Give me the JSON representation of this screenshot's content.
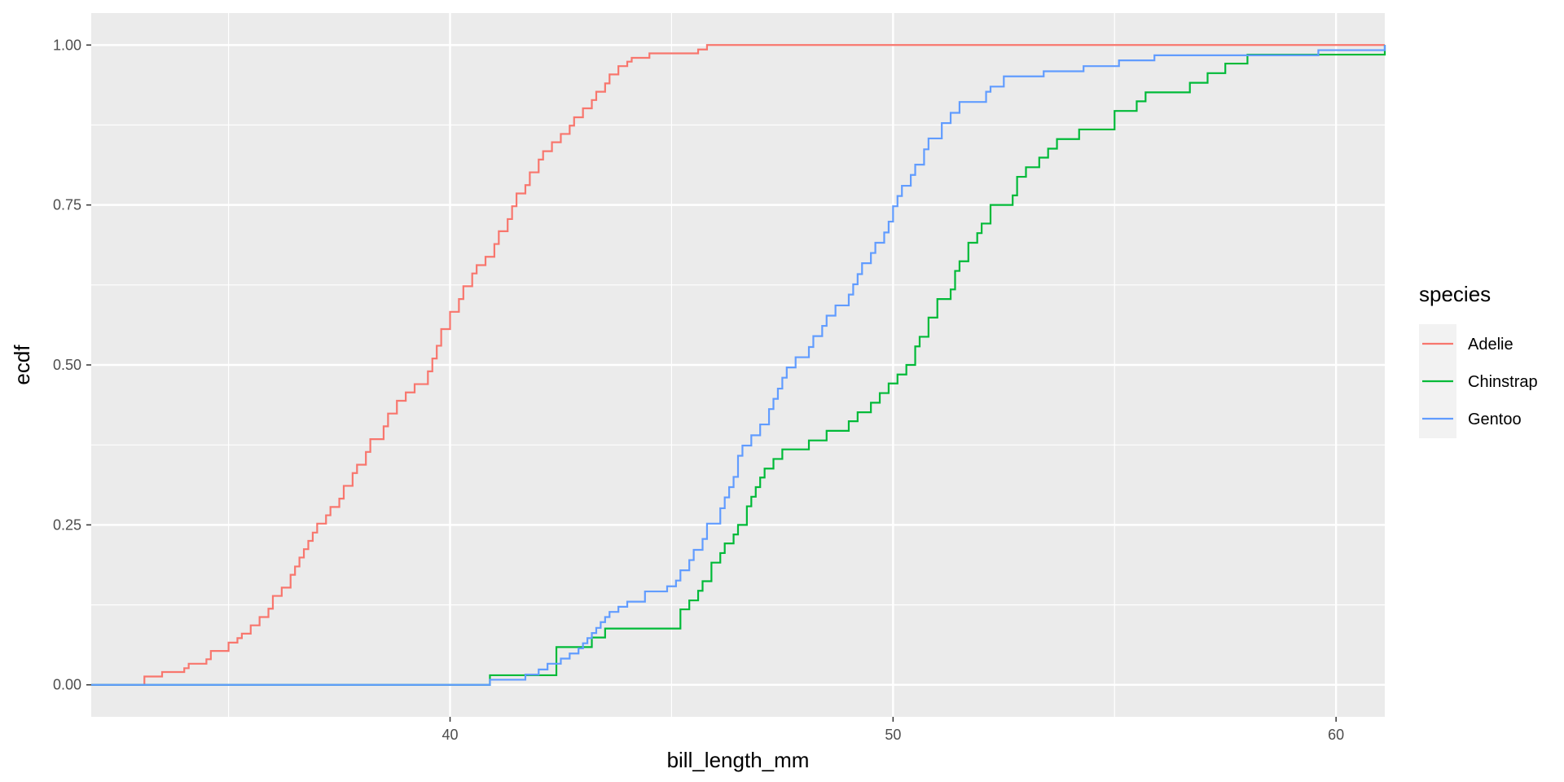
{
  "chart_data": {
    "type": "line",
    "step": true,
    "title": "",
    "xlabel": "bill_length_mm",
    "ylabel": "ecdf",
    "xlim": [
      31.9,
      61.1
    ],
    "ylim": [
      -0.05,
      1.05
    ],
    "x_ticks": [
      40,
      50,
      60
    ],
    "x_tick_labels": [
      "40",
      "50",
      "60"
    ],
    "y_ticks": [
      0,
      0.25,
      0.5,
      0.75,
      1
    ],
    "y_tick_labels": [
      "0.00",
      "0.25",
      "0.50",
      "0.75",
      "1.00"
    ],
    "grid": true,
    "panel_background": "#ebebeb",
    "legend": {
      "title": "species",
      "position": "right"
    },
    "series": [
      {
        "name": "Adelie",
        "color": "#F8766D",
        "points": [
          [
            32.1,
            0.0
          ],
          [
            33.1,
            0.013
          ],
          [
            33.5,
            0.02
          ],
          [
            34.0,
            0.026
          ],
          [
            34.1,
            0.033
          ],
          [
            34.5,
            0.04
          ],
          [
            34.6,
            0.053
          ],
          [
            35.0,
            0.066
          ],
          [
            35.2,
            0.073
          ],
          [
            35.3,
            0.08
          ],
          [
            35.5,
            0.093
          ],
          [
            35.7,
            0.106
          ],
          [
            35.9,
            0.119
          ],
          [
            36.0,
            0.139
          ],
          [
            36.2,
            0.152
          ],
          [
            36.4,
            0.172
          ],
          [
            36.5,
            0.185
          ],
          [
            36.6,
            0.199
          ],
          [
            36.7,
            0.212
          ],
          [
            36.8,
            0.225
          ],
          [
            36.9,
            0.238
          ],
          [
            37.0,
            0.252
          ],
          [
            37.2,
            0.265
          ],
          [
            37.3,
            0.278
          ],
          [
            37.5,
            0.291
          ],
          [
            37.6,
            0.311
          ],
          [
            37.8,
            0.331
          ],
          [
            37.9,
            0.344
          ],
          [
            38.1,
            0.364
          ],
          [
            38.2,
            0.384
          ],
          [
            38.5,
            0.404
          ],
          [
            38.6,
            0.424
          ],
          [
            38.8,
            0.444
          ],
          [
            39.0,
            0.457
          ],
          [
            39.2,
            0.47
          ],
          [
            39.5,
            0.49
          ],
          [
            39.6,
            0.51
          ],
          [
            39.7,
            0.53
          ],
          [
            39.8,
            0.556
          ],
          [
            40.0,
            0.583
          ],
          [
            40.2,
            0.603
          ],
          [
            40.3,
            0.623
          ],
          [
            40.5,
            0.643
          ],
          [
            40.6,
            0.656
          ],
          [
            40.8,
            0.669
          ],
          [
            41.0,
            0.689
          ],
          [
            41.1,
            0.709
          ],
          [
            41.3,
            0.728
          ],
          [
            41.4,
            0.748
          ],
          [
            41.5,
            0.768
          ],
          [
            41.7,
            0.781
          ],
          [
            41.8,
            0.801
          ],
          [
            42.0,
            0.821
          ],
          [
            42.1,
            0.834
          ],
          [
            42.3,
            0.848
          ],
          [
            42.5,
            0.861
          ],
          [
            42.7,
            0.874
          ],
          [
            42.8,
            0.887
          ],
          [
            43.0,
            0.901
          ],
          [
            43.2,
            0.914
          ],
          [
            43.3,
            0.927
          ],
          [
            43.5,
            0.94
          ],
          [
            43.6,
            0.954
          ],
          [
            43.8,
            0.967
          ],
          [
            44.0,
            0.974
          ],
          [
            44.1,
            0.98
          ],
          [
            44.5,
            0.987
          ],
          [
            45.6,
            0.993
          ],
          [
            45.8,
            1.0
          ],
          [
            46.0,
            1.0
          ],
          [
            61.1,
            1.0
          ]
        ]
      },
      {
        "name": "Chinstrap",
        "color": "#00BA38",
        "points": [
          [
            40.9,
            0.015
          ],
          [
            42.4,
            0.059
          ],
          [
            43.2,
            0.074
          ],
          [
            43.5,
            0.088
          ],
          [
            45.2,
            0.118
          ],
          [
            45.4,
            0.132
          ],
          [
            45.6,
            0.147
          ],
          [
            45.7,
            0.162
          ],
          [
            45.9,
            0.191
          ],
          [
            46.1,
            0.206
          ],
          [
            46.2,
            0.221
          ],
          [
            46.4,
            0.235
          ],
          [
            46.5,
            0.25
          ],
          [
            46.7,
            0.279
          ],
          [
            46.8,
            0.294
          ],
          [
            46.9,
            0.309
          ],
          [
            47.0,
            0.324
          ],
          [
            47.1,
            0.338
          ],
          [
            47.3,
            0.353
          ],
          [
            47.5,
            0.368
          ],
          [
            48.1,
            0.382
          ],
          [
            48.5,
            0.397
          ],
          [
            49.0,
            0.412
          ],
          [
            49.2,
            0.426
          ],
          [
            49.5,
            0.441
          ],
          [
            49.7,
            0.456
          ],
          [
            49.9,
            0.471
          ],
          [
            50.1,
            0.485
          ],
          [
            50.3,
            0.5
          ],
          [
            50.5,
            0.529
          ],
          [
            50.6,
            0.544
          ],
          [
            50.8,
            0.574
          ],
          [
            51.0,
            0.603
          ],
          [
            51.3,
            0.618
          ],
          [
            51.4,
            0.647
          ],
          [
            51.5,
            0.662
          ],
          [
            51.7,
            0.691
          ],
          [
            51.9,
            0.706
          ],
          [
            52.0,
            0.721
          ],
          [
            52.2,
            0.75
          ],
          [
            52.7,
            0.765
          ],
          [
            52.8,
            0.794
          ],
          [
            53.0,
            0.809
          ],
          [
            53.3,
            0.824
          ],
          [
            53.5,
            0.838
          ],
          [
            53.7,
            0.853
          ],
          [
            54.2,
            0.868
          ],
          [
            55.0,
            0.897
          ],
          [
            55.5,
            0.912
          ],
          [
            55.7,
            0.926
          ],
          [
            56.7,
            0.941
          ],
          [
            57.1,
            0.956
          ],
          [
            57.5,
            0.971
          ],
          [
            58.0,
            0.985
          ],
          [
            61.1,
            1.0
          ]
        ]
      },
      {
        "name": "Gentoo",
        "color": "#619CFF",
        "points": [
          [
            40.9,
            0.008
          ],
          [
            41.7,
            0.016
          ],
          [
            42.0,
            0.024
          ],
          [
            42.2,
            0.033
          ],
          [
            42.5,
            0.041
          ],
          [
            42.7,
            0.049
          ],
          [
            42.9,
            0.057
          ],
          [
            43.0,
            0.065
          ],
          [
            43.1,
            0.073
          ],
          [
            43.2,
            0.081
          ],
          [
            43.3,
            0.089
          ],
          [
            43.4,
            0.098
          ],
          [
            43.5,
            0.106
          ],
          [
            43.6,
            0.114
          ],
          [
            43.8,
            0.122
          ],
          [
            44.0,
            0.13
          ],
          [
            44.4,
            0.146
          ],
          [
            44.9,
            0.154
          ],
          [
            45.1,
            0.163
          ],
          [
            45.2,
            0.179
          ],
          [
            45.4,
            0.195
          ],
          [
            45.5,
            0.211
          ],
          [
            45.7,
            0.228
          ],
          [
            45.8,
            0.252
          ],
          [
            46.1,
            0.276
          ],
          [
            46.2,
            0.293
          ],
          [
            46.3,
            0.309
          ],
          [
            46.4,
            0.325
          ],
          [
            46.5,
            0.358
          ],
          [
            46.6,
            0.374
          ],
          [
            46.8,
            0.39
          ],
          [
            47.0,
            0.407
          ],
          [
            47.2,
            0.431
          ],
          [
            47.3,
            0.447
          ],
          [
            47.4,
            0.463
          ],
          [
            47.5,
            0.48
          ],
          [
            47.6,
            0.496
          ],
          [
            47.8,
            0.512
          ],
          [
            48.1,
            0.528
          ],
          [
            48.2,
            0.545
          ],
          [
            48.4,
            0.561
          ],
          [
            48.5,
            0.577
          ],
          [
            48.7,
            0.593
          ],
          [
            49.0,
            0.61
          ],
          [
            49.1,
            0.626
          ],
          [
            49.2,
            0.642
          ],
          [
            49.3,
            0.659
          ],
          [
            49.5,
            0.675
          ],
          [
            49.6,
            0.691
          ],
          [
            49.8,
            0.707
          ],
          [
            49.9,
            0.724
          ],
          [
            50.0,
            0.748
          ],
          [
            50.1,
            0.764
          ],
          [
            50.2,
            0.78
          ],
          [
            50.4,
            0.797
          ],
          [
            50.5,
            0.813
          ],
          [
            50.7,
            0.837
          ],
          [
            50.8,
            0.854
          ],
          [
            51.1,
            0.878
          ],
          [
            51.3,
            0.894
          ],
          [
            51.5,
            0.911
          ],
          [
            52.1,
            0.927
          ],
          [
            52.2,
            0.935
          ],
          [
            52.5,
            0.951
          ],
          [
            53.4,
            0.959
          ],
          [
            54.3,
            0.967
          ],
          [
            55.1,
            0.976
          ],
          [
            55.9,
            0.984
          ],
          [
            59.6,
            0.992
          ],
          [
            61.1,
            1.0
          ]
        ]
      }
    ]
  }
}
